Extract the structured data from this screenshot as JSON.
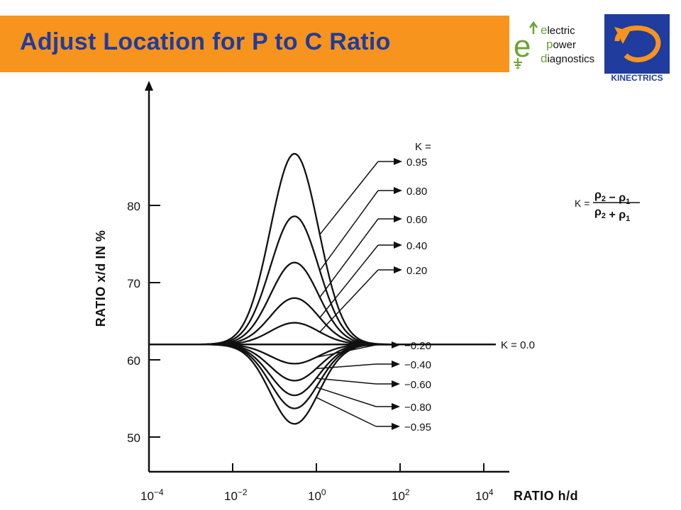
{
  "header": {
    "title": "Adjust Location for P to C Ratio",
    "accent_color": "#f7941d",
    "title_color": "#1f3c9e"
  },
  "logos": {
    "epd": {
      "big_letter": "e",
      "lines": [
        {
          "lead": "e",
          "rest": "lectric"
        },
        {
          "lead": "p",
          "rest": "ower"
        },
        {
          "lead": "d",
          "rest": "iagnostics"
        }
      ]
    },
    "kinectrics": {
      "wordmark": "KINECTRICS",
      "color": "#1f3c9e"
    }
  },
  "chart_data": {
    "type": "line",
    "x_scale": "log",
    "x_ticks": [
      {
        "value": 0.0001,
        "base": "10",
        "exp": "−4"
      },
      {
        "value": 0.01,
        "base": "10",
        "exp": "−2"
      },
      {
        "value": 1,
        "base": "10",
        "exp": "0"
      },
      {
        "value": 100,
        "base": "10",
        "exp": "2"
      },
      {
        "value": 10000,
        "base": "10",
        "exp": "4"
      }
    ],
    "xlabel": "RATIO h/d",
    "ylabel": "RATIO x/d IN %",
    "y_ticks": [
      50,
      60,
      70,
      80
    ],
    "ylim": [
      44,
      92
    ],
    "baseline": 62,
    "baseline_label": "K = 0.0",
    "legend_header": "K =",
    "formula": {
      "lhs": "K =",
      "num_a": "ρ",
      "num_a_sub": "2",
      "num_op": " − ",
      "num_b": "ρ",
      "num_b_sub": "1",
      "den_a": "ρ",
      "den_a_sub": "2",
      "den_op": " + ",
      "den_b": "ρ",
      "den_b_sub": "1"
    },
    "series": [
      {
        "name": "0.95",
        "k": 0.95,
        "peak": 86.7,
        "label": "0.95"
      },
      {
        "name": "0.80",
        "k": 0.8,
        "peak": 78.6,
        "label": "0.80"
      },
      {
        "name": "0.60",
        "k": 0.6,
        "peak": 72.6,
        "label": "0.60"
      },
      {
        "name": "0.40",
        "k": 0.4,
        "peak": 68.0,
        "label": "0.40"
      },
      {
        "name": "0.20",
        "k": 0.2,
        "peak": 64.8,
        "label": "0.20"
      },
      {
        "name": "-0.20",
        "k": -0.2,
        "peak": 59.5,
        "label": "−0.20"
      },
      {
        "name": "-0.40",
        "k": -0.4,
        "peak": 57.3,
        "label": "−0.40"
      },
      {
        "name": "-0.60",
        "k": -0.6,
        "peak": 55.4,
        "label": "−0.60"
      },
      {
        "name": "-0.80",
        "k": -0.8,
        "peak": 53.7,
        "label": "−0.80"
      },
      {
        "name": "-0.95",
        "k": -0.95,
        "peak": 51.7,
        "label": "−0.95"
      }
    ],
    "peak_x": 0.3
  }
}
